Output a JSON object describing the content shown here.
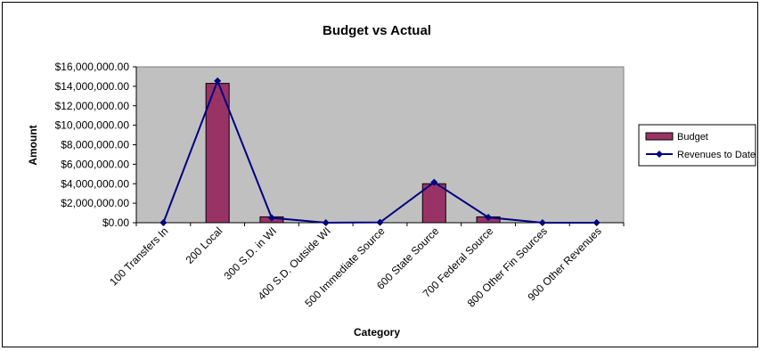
{
  "chart_data": {
    "type": "bar",
    "title": "Budget vs Actual",
    "xlabel": "Category",
    "ylabel": "Amount",
    "ylim": [
      0,
      16000000
    ],
    "yticks": [
      0,
      2000000,
      4000000,
      6000000,
      8000000,
      10000000,
      12000000,
      14000000,
      16000000
    ],
    "ytick_labels": [
      "$0.00",
      "$2,000,000.00",
      "$4,000,000.00",
      "$6,000,000.00",
      "$8,000,000.00",
      "$10,000,000.00",
      "$12,000,000.00",
      "$14,000,000.00",
      "$16,000,000.00"
    ],
    "categories": [
      "100 Transfers In",
      "200 Local",
      "300 S.D. in WI",
      "400 S.D. Outside WI",
      "500 Immediate Source",
      "600 State Source",
      "700 Federal Source",
      "800 Other Fin Sources",
      "900 Other Revenues"
    ],
    "series": [
      {
        "name": "Budget",
        "type": "bar",
        "color": "#993366",
        "values": [
          0,
          14300000,
          600000,
          0,
          0,
          4000000,
          600000,
          0,
          0
        ]
      },
      {
        "name": "Revenues to Date",
        "type": "line",
        "color": "#000080",
        "values": [
          0,
          14550000,
          500000,
          0,
          30000,
          4150000,
          550000,
          0,
          0
        ]
      }
    ],
    "grid": false,
    "plot_background": "#c0c0c0",
    "legend_position": "right"
  }
}
